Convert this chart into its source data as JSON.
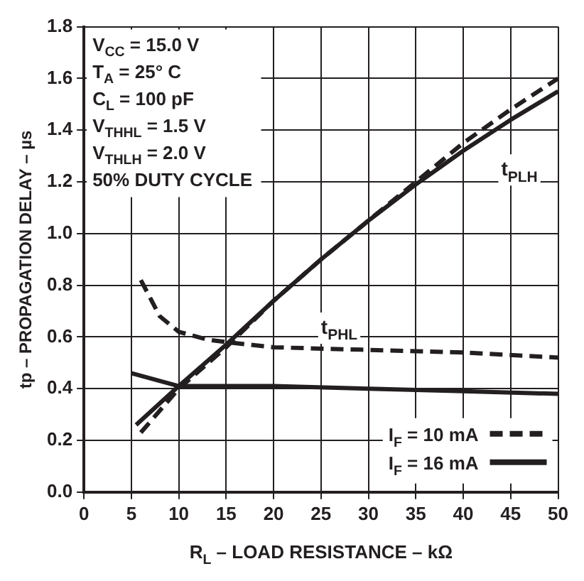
{
  "chart_data": {
    "type": "line",
    "xlabel": "R$_{L}$ – LOAD RESISTANCE – kΩ",
    "ylabel": "tp – PROPAGATION DELAY – µs",
    "xlim": [
      0,
      50
    ],
    "xticks": [
      0,
      5,
      10,
      15,
      20,
      25,
      30,
      35,
      40,
      45,
      50
    ],
    "ylim": [
      0,
      1.8
    ],
    "yticks": [
      {
        "value": 0,
        "label": "0.0"
      },
      0.2,
      0.4,
      0.6,
      0.8,
      {
        "value": 1,
        "label": "1.0"
      },
      1.2,
      1.4,
      1.6,
      1.8
    ],
    "grid": true,
    "legend": "bottom right",
    "marker": "none",
    "series": [
      {
        "name": "I$_{F}$ = 10 mA",
        "color": "#231f20",
        "line_style": "dashed",
        "x": [
          6,
          10,
          15,
          20,
          25,
          30,
          35,
          40,
          45,
          50
        ],
        "values": [
          0.23,
          0.4,
          0.56,
          0.74,
          0.9,
          1.05,
          1.2,
          1.35,
          1.48,
          1.6
        ]
      },
      {
        "name": "I$_{F}$ = 16 mA",
        "color": "#231f20",
        "line_style": "solid",
        "x": [
          5.5,
          10,
          15,
          20,
          25,
          30,
          35,
          40,
          45,
          50
        ],
        "values": [
          0.26,
          0.41,
          0.57,
          0.74,
          0.9,
          1.05,
          1.19,
          1.32,
          1.44,
          1.55
        ]
      },
      {
        "color": "#231f20",
        "line_style": "dashed",
        "x": [
          6,
          8,
          10,
          13,
          15,
          20,
          30,
          40,
          50
        ],
        "values": [
          0.82,
          0.68,
          0.62,
          0.59,
          0.58,
          0.56,
          0.55,
          0.54,
          0.52
        ]
      },
      {
        "color": "#231f20",
        "line_style": "solid",
        "x": [
          5,
          10,
          20,
          30,
          40,
          50
        ],
        "values": [
          0.46,
          0.41,
          0.41,
          0.4,
          0.39,
          0.38
        ]
      }
    ],
    "annotations": [
      "V$_{CC}$ = 15.0 V",
      "T$_{A}$ = 25° C",
      "C$_{L}$ = 100 pF",
      "V$_{THHL}$ = 1.5 V",
      "V$_{THLH}$ = 2.0 V",
      "50% DUTY CYCLE",
      "t$_{PLH}$",
      "t$_{PHL}$"
    ]
  }
}
